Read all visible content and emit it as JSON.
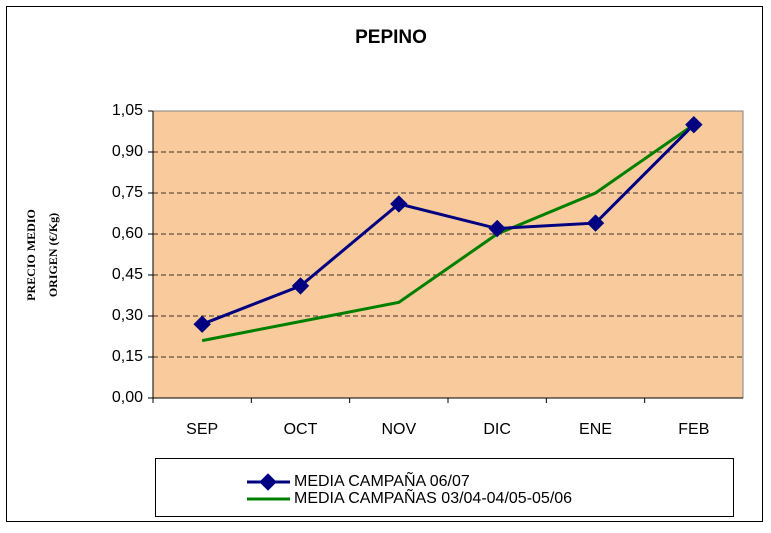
{
  "chart_data": {
    "type": "line",
    "title": "PEPINO",
    "y_label": [
      "PRECIO MEDIO",
      "ORIGEN (€/Kg)"
    ],
    "categories": [
      "SEP",
      "OCT",
      "NOV",
      "DIC",
      "ENE",
      "FEB"
    ],
    "series": [
      {
        "name": "MEDIA CAMPAÑA 06/07",
        "color": "#000080",
        "marker": "diamond",
        "values": [
          0.27,
          0.41,
          0.71,
          0.62,
          0.64,
          1.0
        ]
      },
      {
        "name": "MEDIA CAMPAÑAS 03/04-04/05-05/06",
        "color": "#008000",
        "marker": "none",
        "values": [
          0.21,
          0.28,
          0.35,
          0.6,
          0.75,
          1.0
        ]
      }
    ],
    "ylim": [
      0,
      1.05
    ],
    "yticks": [
      {
        "value": 0,
        "label": "0,00"
      },
      {
        "value": 0.15,
        "label": "0,15"
      },
      {
        "value": 0.3,
        "label": "0,30"
      },
      {
        "value": 0.45,
        "label": "0,45"
      },
      {
        "value": 0.6,
        "label": "0,60"
      },
      {
        "value": 0.75,
        "label": "0,75"
      },
      {
        "value": 0.9,
        "label": "0,90"
      },
      {
        "value": 1.05,
        "label": "1,05"
      }
    ],
    "grid": true,
    "legend": "bottom",
    "plot_background": "#F9CB9C"
  }
}
